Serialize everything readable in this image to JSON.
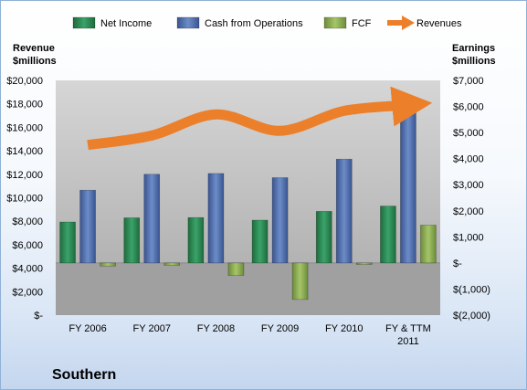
{
  "chart_data": {
    "type": "bar",
    "title": "Southern",
    "categories": [
      "FY 2006",
      "FY 2007",
      "FY 2008",
      "FY 2009",
      "FY 2010",
      "FY & TTM 2011"
    ],
    "category_lines": [
      [
        "FY 2006"
      ],
      [
        "FY 2007"
      ],
      [
        "FY 2008"
      ],
      [
        "FY 2009"
      ],
      [
        "FY 2010"
      ],
      [
        "FY & TTM",
        "2011"
      ]
    ],
    "left_axis": {
      "label_lines": [
        "Revenue",
        "$millions"
      ],
      "ylim": [
        0,
        20000
      ],
      "ticks": [
        0,
        2000,
        4000,
        6000,
        8000,
        10000,
        12000,
        14000,
        16000,
        18000,
        20000
      ],
      "tick_labels": [
        "$-",
        "$2,000",
        "$4,000",
        "$6,000",
        "$8,000",
        "$10,000",
        "$12,000",
        "$14,000",
        "$16,000",
        "$18,000",
        "$20,000"
      ]
    },
    "right_axis": {
      "label_lines": [
        "Earnings",
        "$millions"
      ],
      "ylim": [
        -2000,
        7000
      ],
      "ticks": [
        -2000,
        -1000,
        0,
        1000,
        2000,
        3000,
        4000,
        5000,
        6000,
        7000
      ],
      "tick_labels": [
        "$(2,000)",
        "$(1,000)",
        "$-",
        "$1,000",
        "$2,000",
        "$3,000",
        "$4,000",
        "$5,000",
        "$6,000",
        "$7,000"
      ]
    },
    "series": [
      {
        "name": "Net Income",
        "type": "bar",
        "axis": "right",
        "color": "#2e8b57",
        "values": [
          1570,
          1730,
          1740,
          1640,
          1980,
          2180
        ]
      },
      {
        "name": "Cash from Operations",
        "type": "bar",
        "axis": "right",
        "color": "#4f6fb0",
        "values": [
          2790,
          3400,
          3430,
          3270,
          3980,
          5870
        ]
      },
      {
        "name": "FCF",
        "type": "bar",
        "axis": "right",
        "color": "#8cb050",
        "values": [
          -120,
          -90,
          -480,
          -1400,
          -60,
          1450
        ]
      },
      {
        "name": "Revenues",
        "type": "line",
        "axis": "left",
        "color": "#ec7f2a",
        "values": [
          14500,
          15300,
          17100,
          15700,
          17400,
          17900
        ]
      }
    ],
    "legend": "top",
    "grid": false
  }
}
